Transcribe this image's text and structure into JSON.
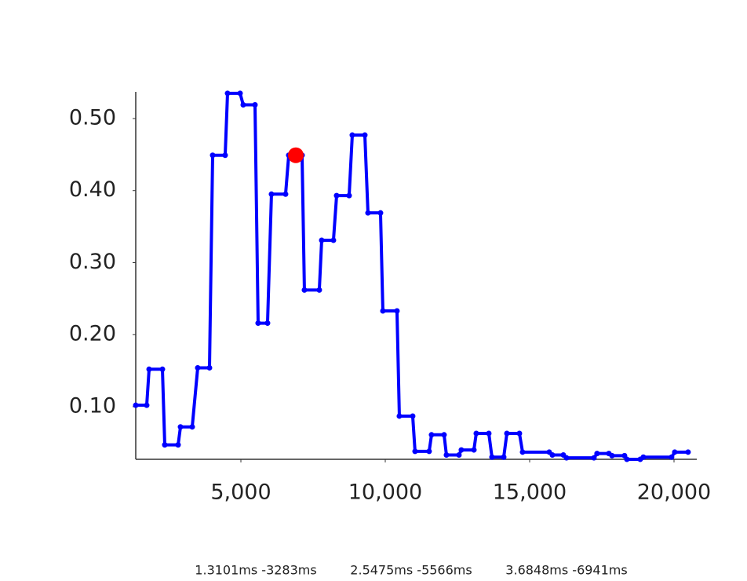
{
  "chart_data": {
    "type": "line",
    "x": [
      1359,
      1739,
      1821,
      2283,
      2364,
      2826,
      2908,
      3315,
      3505,
      3913,
      4022,
      4456,
      4538,
      4973,
      5081,
      5489,
      5597,
      5923,
      6059,
      6548,
      6657,
      7119,
      7200,
      7716,
      7798,
      8206,
      8315,
      8749,
      8858,
      9293,
      9401,
      9836,
      9917,
      10406,
      10488,
      10950,
      11031,
      11520,
      11602,
      12037,
      12118,
      12553,
      12635,
      13070,
      13151,
      13586,
      13695,
      14103,
      14211,
      14646,
      14755,
      15678,
      15787,
      16167,
      16276,
      17227,
      17335,
      17743,
      17852,
      18286,
      18368,
      18830,
      18938,
      19916,
      20025,
      20487
    ],
    "series": [
      {
        "color": "#0000ff",
        "values": [
          0.102,
          0.102,
          0.152,
          0.152,
          0.047,
          0.047,
          0.072,
          0.072,
          0.154,
          0.154,
          0.449,
          0.449,
          0.535,
          0.535,
          0.519,
          0.519,
          0.216,
          0.216,
          0.395,
          0.395,
          0.449,
          0.449,
          0.262,
          0.262,
          0.331,
          0.331,
          0.393,
          0.393,
          0.477,
          0.477,
          0.369,
          0.369,
          0.233,
          0.233,
          0.087,
          0.087,
          0.038,
          0.038,
          0.061,
          0.061,
          0.033,
          0.033,
          0.04,
          0.04,
          0.063,
          0.063,
          0.03,
          0.03,
          0.063,
          0.063,
          0.037,
          0.037,
          0.033,
          0.033,
          0.029,
          0.029,
          0.035,
          0.035,
          0.032,
          0.032,
          0.027,
          0.027,
          0.03,
          0.03,
          0.037,
          0.037
        ]
      }
    ],
    "highlight": {
      "x": 6902,
      "y": 0.449,
      "color": "#ff0000"
    },
    "xlim": [
      1359,
      20788
    ],
    "ylim": [
      0.027,
      0.537
    ],
    "xticks": [
      {
        "value": 5000,
        "label": "5,000"
      },
      {
        "value": 10000,
        "label": "10,000"
      },
      {
        "value": 15000,
        "label": "15,000"
      },
      {
        "value": 20000,
        "label": "20,000"
      }
    ],
    "yticks": [
      {
        "value": 0.1,
        "label": "0.10"
      },
      {
        "value": 0.2,
        "label": "0.20"
      },
      {
        "value": 0.3,
        "label": "0.30"
      },
      {
        "value": 0.4,
        "label": "0.40"
      },
      {
        "value": 0.5,
        "label": "0.50"
      }
    ],
    "grid": false,
    "annotations": [
      "1.3101ms -3283ms",
      "2.5475ms -5566ms",
      "3.6848ms -6941ms"
    ]
  }
}
